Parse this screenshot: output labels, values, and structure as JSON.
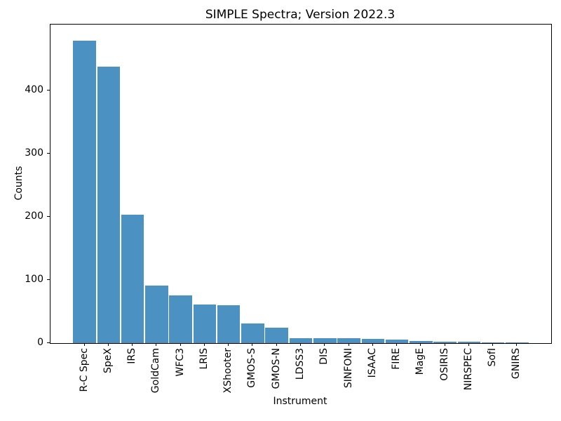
{
  "title": "SIMPLE Spectra; Version 2022.3",
  "chart_data": {
    "type": "bar",
    "title": "SIMPLE Spectra; Version 2022.3",
    "xlabel": "Instrument",
    "ylabel": "Counts",
    "categories": [
      "R-C Spec",
      "SpeX",
      "IRS",
      "GoldCam",
      "WFC3",
      "LRIS",
      "XShooter",
      "GMOS-S",
      "GMOS-N",
      "LDSS3",
      "DIS",
      "SINFONI",
      "ISAAC",
      "FIRE",
      "MagE",
      "OSIRIS",
      "NIRSPEC",
      "SofI",
      "GNIRS"
    ],
    "values": [
      478,
      437,
      203,
      91,
      75,
      61,
      60,
      31,
      24,
      8,
      8,
      8,
      7,
      6,
      3,
      2,
      2,
      1,
      1
    ],
    "yticks": [
      0,
      100,
      200,
      300,
      400
    ],
    "ylim": [
      0,
      504
    ],
    "bar_color": "#4b92c3",
    "grid": false,
    "legend": "none"
  }
}
